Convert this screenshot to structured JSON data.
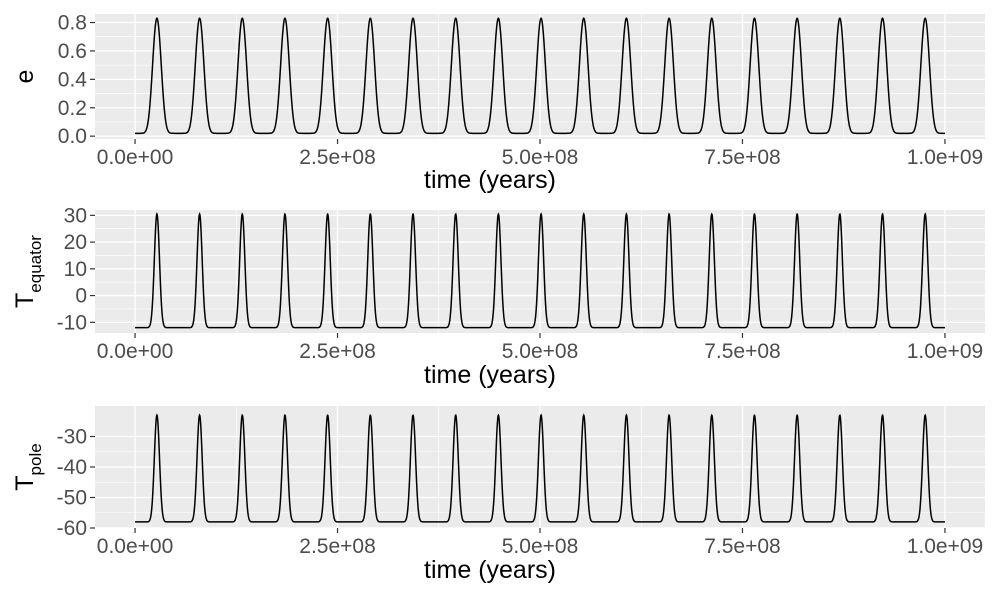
{
  "chart_data": [
    {
      "type": "line",
      "panel": "top",
      "ylabel": "e",
      "ylabel_main": "e",
      "ylabel_sub": "",
      "xlabel": "time (years)",
      "xlim": [
        0,
        1000000000
      ],
      "ylim": [
        -0.02,
        0.86
      ],
      "xticks": [
        0,
        250000000,
        500000000,
        750000000,
        1000000000
      ],
      "xtick_labels": [
        "0.0e+00",
        "2.5e+08",
        "5.0e+08",
        "7.5e+08",
        "1.0e+09"
      ],
      "yticks": [
        0,
        0.2,
        0.4,
        0.6,
        0.8
      ],
      "ytick_labels": [
        "0.0",
        "0.2",
        "0.4",
        "0.6",
        "0.8"
      ],
      "grid": true,
      "series": [
        {
          "x_start": 0,
          "x_end": 1000000000,
          "baseline": 0.02,
          "peak": 0.83,
          "first_peak_x": 27000000,
          "period": 52700000,
          "peak_count": 19,
          "curve": "periodic-peaks",
          "line_color": "#000000"
        }
      ]
    },
    {
      "type": "line",
      "panel": "middle",
      "ylabel": "T_equator",
      "ylabel_main": "T",
      "ylabel_sub": "equator",
      "xlabel": "time (years)",
      "xlim": [
        0,
        1000000000
      ],
      "ylim": [
        -14,
        32
      ],
      "xticks": [
        0,
        250000000,
        500000000,
        750000000,
        1000000000
      ],
      "xtick_labels": [
        "0.0e+00",
        "2.5e+08",
        "5.0e+08",
        "7.5e+08",
        "1.0e+09"
      ],
      "yticks": [
        -10,
        0,
        10,
        20,
        30
      ],
      "ytick_labels": [
        "-10",
        "0",
        "10",
        "20",
        "30"
      ],
      "grid": true,
      "series": [
        {
          "x_start": 0,
          "x_end": 1000000000,
          "baseline": -12,
          "peak": 30.5,
          "first_peak_x": 27000000,
          "period": 52700000,
          "peak_count": 19,
          "curve": "periodic-sharp-peaks",
          "line_color": "#000000"
        }
      ]
    },
    {
      "type": "line",
      "panel": "bottom",
      "ylabel": "T_pole",
      "ylabel_main": "T",
      "ylabel_sub": "pole",
      "xlabel": "time (years)",
      "xlim": [
        0,
        1000000000
      ],
      "ylim": [
        -60,
        -20
      ],
      "xticks": [
        0,
        250000000,
        500000000,
        750000000,
        1000000000
      ],
      "xtick_labels": [
        "0.0e+00",
        "2.5e+08",
        "5.0e+08",
        "7.5e+08",
        "1.0e+09"
      ],
      "yticks": [
        -60,
        -50,
        -40,
        -30
      ],
      "ytick_labels": [
        "-60",
        "-50",
        "-40",
        "-30"
      ],
      "grid": true,
      "series": [
        {
          "x_start": 0,
          "x_end": 1000000000,
          "baseline": -58,
          "peak": -23,
          "first_peak_x": 27000000,
          "period": 52700000,
          "peak_count": 19,
          "curve": "periodic-sharp-peaks",
          "line_color": "#000000"
        }
      ]
    }
  ],
  "colors": {
    "panel_background": "#ebebeb",
    "grid": "#ffffff",
    "tick_text": "#4d4d4d",
    "tick_mark": "#333333",
    "line": "#000000"
  }
}
